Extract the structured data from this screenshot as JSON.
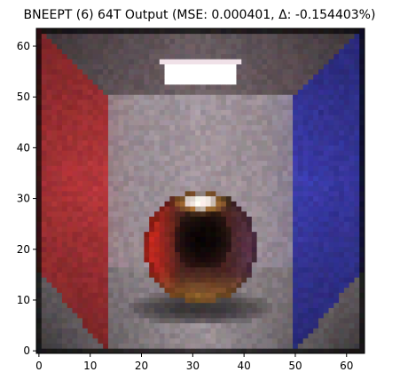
{
  "chart_data": {
    "type": "heatmap",
    "title": "BNEEPT (6) 64T Output (MSE: 0.000401, Δ: -0.154403%)",
    "xlabel": "",
    "ylabel": "",
    "xlim": [
      0,
      64
    ],
    "ylim": [
      0,
      64
    ],
    "origin": "lower",
    "grid": false,
    "legend": "none",
    "x_ticks": [
      0,
      10,
      20,
      30,
      40,
      50,
      60
    ],
    "y_ticks": [
      0,
      10,
      20,
      30,
      40,
      50,
      60
    ],
    "resolution": 64,
    "scene": {
      "description_visible": "Cornell box render",
      "light": {
        "x0": 25,
        "x1": 39,
        "y0": 53,
        "y1": 57,
        "color": "#ffffff"
      },
      "sphere": {
        "cx": 32,
        "cy": 21,
        "r": 11
      },
      "left_wall_color": "#c03a3e",
      "right_wall_color": "#3f3fb5",
      "back_wall_color": "#a79aa2",
      "floor_color": "#a59aa0",
      "ceiling_color": "#7a6a70"
    }
  }
}
